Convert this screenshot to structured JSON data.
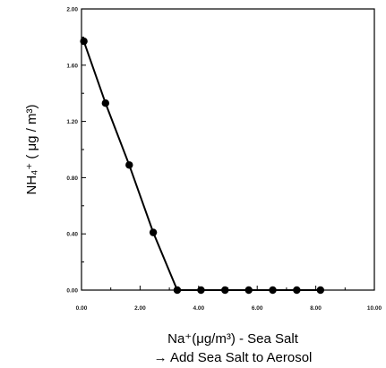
{
  "chart_data": {
    "type": "line",
    "title": "",
    "xlabel": "Na⁺(μg/m³) - Sea Salt",
    "xlabel_line2": "→ Add Sea Salt to Aerosol",
    "ylabel": "NH₄⁺ ( μg / m³)",
    "xlim": [
      0,
      10.0
    ],
    "ylim": [
      0,
      2.0
    ],
    "x_tick_labels": [
      "0.00",
      "2.00",
      "4.00",
      "6.00",
      "8.00",
      "10.00"
    ],
    "y_tick_labels": [
      "0.00",
      "0.40",
      "0.80",
      "1.20",
      "1.60",
      "2.00"
    ],
    "grid": false,
    "series": [
      {
        "x": [
          0.08,
          0.82,
          1.63,
          2.45,
          3.27,
          4.08,
          4.9,
          5.71,
          6.53,
          7.35,
          8.16
        ],
        "y": [
          1.77,
          1.33,
          0.89,
          0.41,
          0.0,
          0.0,
          0.0,
          0.0,
          0.0,
          0.0,
          0.0
        ],
        "color": "#000000",
        "marker": "circle"
      }
    ]
  }
}
